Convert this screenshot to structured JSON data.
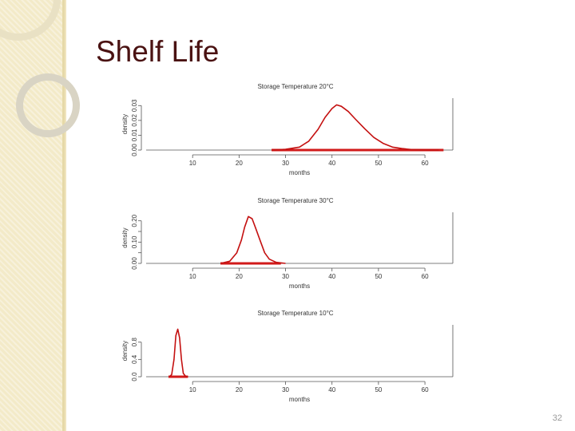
{
  "slide": {
    "title": "Shelf Life",
    "page_number": "32"
  },
  "chart_data": [
    {
      "type": "line",
      "title": "Storage Temperature 20°C",
      "xlabel": "months",
      "ylabel": "density",
      "xlim": [
        0,
        66
      ],
      "ylim": [
        0,
        0.035
      ],
      "xticks": [
        10,
        20,
        30,
        40,
        50,
        60
      ],
      "yticks": [
        0.0,
        0.01,
        0.02,
        0.03
      ],
      "ytick_labels": [
        "0.00",
        "0.01",
        "0.02",
        "0.03"
      ],
      "series": [
        {
          "x": [
            27,
            30,
            33,
            35,
            37,
            38.5,
            40,
            41,
            42,
            43.5,
            45,
            47,
            49,
            51,
            53,
            55,
            57,
            60,
            63
          ],
          "y": [
            0.0,
            0.0005,
            0.002,
            0.006,
            0.014,
            0.022,
            0.028,
            0.0305,
            0.0295,
            0.026,
            0.021,
            0.0145,
            0.0085,
            0.0045,
            0.002,
            0.001,
            0.0004,
            0.0001,
            0.0
          ]
        }
      ],
      "rug": [
        27,
        64
      ]
    },
    {
      "type": "line",
      "title": "Storage Temperature 30°C",
      "xlabel": "months",
      "ylabel": "density",
      "xlim": [
        0,
        66
      ],
      "ylim": [
        0,
        0.24
      ],
      "xticks": [
        10,
        20,
        30,
        40,
        50,
        60
      ],
      "yticks": [
        0.0,
        0.05,
        0.1,
        0.15,
        0.2
      ],
      "ytick_labels": [
        "0.00",
        "",
        "0.10",
        "",
        "0.20"
      ],
      "series": [
        {
          "x": [
            16,
            18,
            19.5,
            20.5,
            21.2,
            22,
            22.8,
            23.5,
            24.5,
            25.5,
            26.5,
            28,
            30
          ],
          "y": [
            0.0,
            0.01,
            0.05,
            0.11,
            0.17,
            0.22,
            0.21,
            0.17,
            0.11,
            0.05,
            0.02,
            0.005,
            0.0
          ]
        }
      ],
      "rug": [
        16,
        29
      ]
    },
    {
      "type": "line",
      "title": "Storage Temperature 10°C",
      "xlabel": "months",
      "ylabel": "density",
      "xlim": [
        0,
        66
      ],
      "ylim": [
        0,
        1.2
      ],
      "xticks": [
        10,
        20,
        30,
        40,
        50,
        60
      ],
      "yticks": [
        0.0,
        0.4,
        0.8
      ],
      "ytick_labels": [
        "0.0",
        "0.4",
        "0.8"
      ],
      "series": [
        {
          "x": [
            5,
            5.5,
            6,
            6.4,
            6.8,
            7.2,
            7.6,
            8,
            8.5,
            9
          ],
          "y": [
            0.0,
            0.05,
            0.4,
            0.95,
            1.1,
            0.9,
            0.4,
            0.08,
            0.01,
            0.0
          ]
        }
      ],
      "rug": [
        4.8,
        9
      ]
    }
  ]
}
